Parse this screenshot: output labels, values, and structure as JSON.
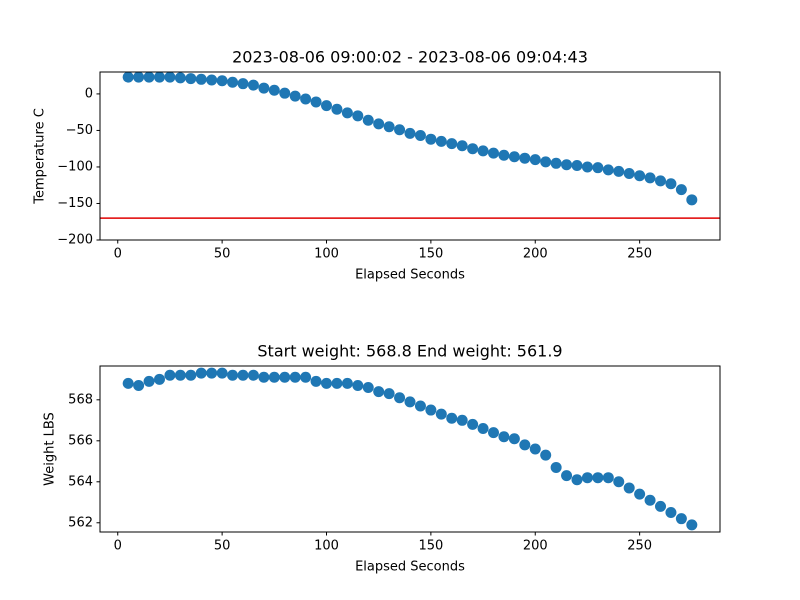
{
  "chart_data": [
    {
      "type": "scatter",
      "title": "2023-08-06 09:00:02 - 2023-08-06 09:04:43",
      "xlabel": "Elapsed Seconds",
      "ylabel": "Temperature C",
      "x": [
        5,
        10,
        15,
        20,
        25,
        30,
        35,
        40,
        45,
        50,
        55,
        60,
        65,
        70,
        75,
        80,
        85,
        90,
        95,
        100,
        105,
        110,
        115,
        120,
        125,
        130,
        135,
        140,
        145,
        150,
        155,
        160,
        165,
        170,
        175,
        180,
        185,
        190,
        195,
        200,
        205,
        210,
        215,
        220,
        225,
        230,
        235,
        240,
        245,
        250,
        255,
        260,
        265,
        270,
        275
      ],
      "values": [
        23,
        23,
        23,
        23,
        23,
        22,
        21,
        20,
        19,
        18,
        16,
        14,
        12,
        8,
        5,
        1,
        -3,
        -7,
        -11,
        -16,
        -21,
        -26,
        -30,
        -36,
        -41,
        -45,
        -49,
        -54,
        -57,
        -62,
        -65,
        -68,
        -71,
        -75,
        -78,
        -81,
        -84,
        -86,
        -88,
        -90,
        -93,
        -95,
        -97,
        -98,
        -100,
        -101,
        -104,
        -106,
        -109,
        -112,
        -115,
        -119,
        -123,
        -131,
        -145
      ],
      "color": "#1f77b4",
      "hline": {
        "value": -170,
        "color": "#e00000"
      },
      "xlim": [
        -8.5,
        288.5
      ],
      "xticks": [
        0,
        50,
        100,
        150,
        200,
        250
      ],
      "ylim": [
        -200,
        30
      ],
      "yticks": [
        {
          "value": -200,
          "label": "−200"
        },
        {
          "value": -150,
          "label": "−150"
        },
        {
          "value": -100,
          "label": "−100"
        },
        {
          "value": -50,
          "label": "−50"
        },
        0
      ]
    },
    {
      "type": "scatter",
      "title": "Start weight: 568.8 End weight: 561.9",
      "xlabel": "Elapsed Seconds",
      "ylabel": "Weight LBS",
      "x": [
        5,
        10,
        15,
        20,
        25,
        30,
        35,
        40,
        45,
        50,
        55,
        60,
        65,
        70,
        75,
        80,
        85,
        90,
        95,
        100,
        105,
        110,
        115,
        120,
        125,
        130,
        135,
        140,
        145,
        150,
        155,
        160,
        165,
        170,
        175,
        180,
        185,
        190,
        195,
        200,
        205,
        210,
        215,
        220,
        225,
        230,
        235,
        240,
        245,
        250,
        255,
        260,
        265,
        270,
        275
      ],
      "values": [
        568.8,
        568.7,
        568.9,
        569.0,
        569.2,
        569.2,
        569.2,
        569.3,
        569.3,
        569.3,
        569.2,
        569.2,
        569.2,
        569.1,
        569.1,
        569.1,
        569.1,
        569.1,
        568.9,
        568.8,
        568.8,
        568.8,
        568.7,
        568.6,
        568.4,
        568.3,
        568.1,
        567.9,
        567.7,
        567.5,
        567.3,
        567.1,
        567.0,
        566.8,
        566.6,
        566.4,
        566.2,
        566.1,
        565.8,
        565.6,
        565.3,
        564.7,
        564.3,
        564.1,
        564.2,
        564.2,
        564.2,
        564.0,
        563.7,
        563.4,
        563.1,
        562.8,
        562.5,
        562.2,
        561.9
      ],
      "color": "#1f77b4",
      "xlim": [
        -8.5,
        288.5
      ],
      "xticks": [
        0,
        50,
        100,
        150,
        200,
        250
      ],
      "ylim": [
        561.55,
        569.65
      ],
      "yticks": [
        562,
        564,
        566,
        568
      ]
    }
  ]
}
